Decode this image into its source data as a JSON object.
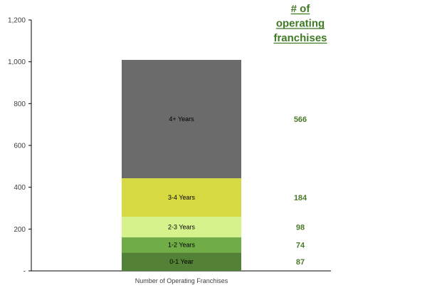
{
  "chart_data": {
    "type": "bar",
    "stacked": true,
    "categories": [
      "Number of Operating Franchises"
    ],
    "series": [
      {
        "name": "0-1 Year",
        "values": [
          87
        ],
        "color": "#538135",
        "count_label": "87"
      },
      {
        "name": "1-2 Years",
        "values": [
          74
        ],
        "color": "#70ad47",
        "count_label": "74"
      },
      {
        "name": "2-3 Years",
        "values": [
          98
        ],
        "color": "#d5f28c",
        "count_label": "98"
      },
      {
        "name": "3-4 Years",
        "values": [
          184
        ],
        "color": "#d6d942",
        "count_label": "184"
      },
      {
        "name": "4+ Years",
        "values": [
          566
        ],
        "color": "#6b6b6b",
        "count_label": "566"
      }
    ],
    "ylim": [
      0,
      1200
    ],
    "yticks": [
      {
        "value": 0,
        "label": "-"
      },
      {
        "value": 200,
        "label": "200"
      },
      {
        "value": 400,
        "label": "400"
      },
      {
        "value": 600,
        "label": "600"
      },
      {
        "value": 800,
        "label": "800"
      },
      {
        "value": 1000,
        "label": "1,000"
      },
      {
        "value": 1200,
        "label": "1,200"
      }
    ],
    "xlabel": "Number of Operating Franchises",
    "count_header": [
      "# of",
      "operating",
      "franchises"
    ],
    "count_color": "#4a7a2a",
    "grid": false
  }
}
